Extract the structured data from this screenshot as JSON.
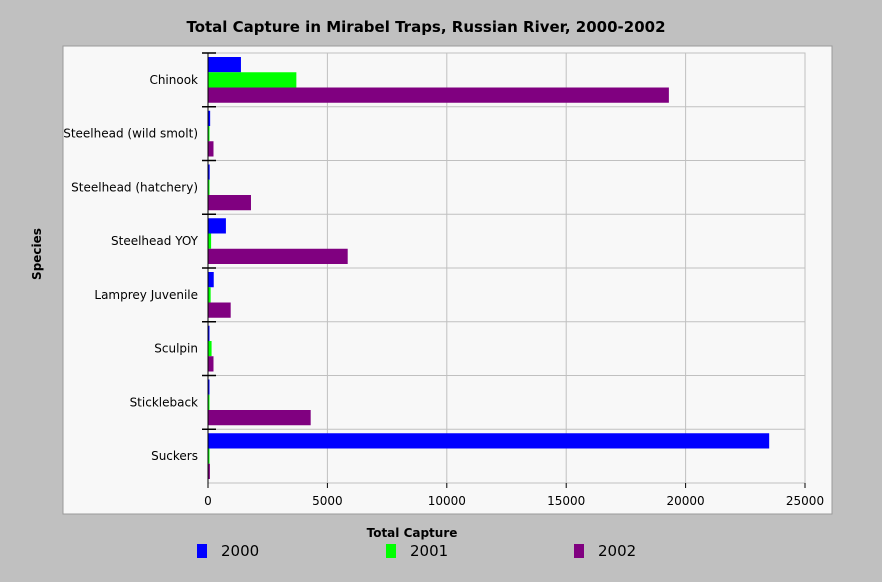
{
  "chart_data": {
    "type": "bar",
    "orientation": "horizontal",
    "title": "Total Capture in Mirabel Traps, Russian River, 2000-2002",
    "xlabel": "Total Capture",
    "ylabel": "Species",
    "categories": [
      "Chinook",
      "Steelhead (wild smolt)",
      "Steelhead (hatchery)",
      "Steelhead YOY",
      "Lamprey Juvenile",
      "Sculpin",
      "Stickleback",
      "Suckers"
    ],
    "series": [
      {
        "name": "2000",
        "color": "#0000ff",
        "values": [
          1380,
          90,
          70,
          750,
          240,
          30,
          50,
          23500
        ]
      },
      {
        "name": "2001",
        "color": "#00ff00",
        "values": [
          3700,
          20,
          10,
          130,
          110,
          150,
          10,
          20
        ]
      },
      {
        "name": "2002",
        "color": "#800080",
        "values": [
          19300,
          230,
          1800,
          5850,
          950,
          230,
          4300,
          80
        ]
      }
    ],
    "xlim": [
      0,
      25000
    ],
    "xticks": [
      "0",
      "5000",
      "10000",
      "15000",
      "20000",
      "25000"
    ],
    "grid": true,
    "legend_position": "bottom"
  }
}
